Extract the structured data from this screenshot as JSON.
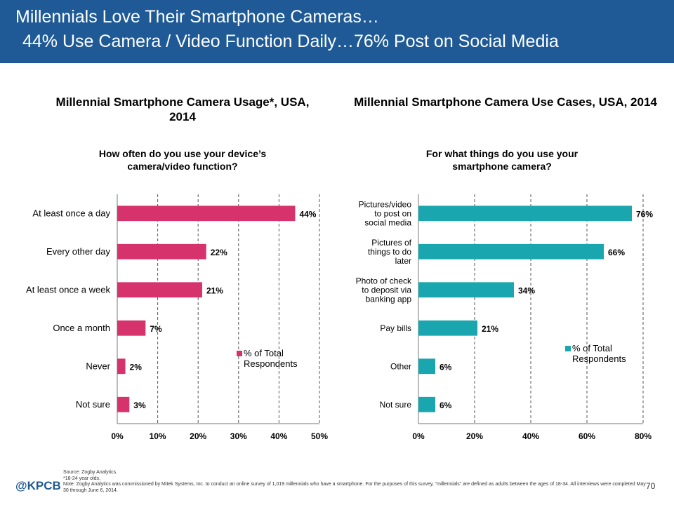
{
  "header": {
    "line1": "Millennials Love Their Smartphone Cameras…",
    "line2": "44% Use Camera / Video Function Daily…76% Post on Social Media"
  },
  "chart_data": [
    {
      "type": "bar",
      "orientation": "horizontal",
      "title": "Millennial Smartphone Camera Usage*, USA, 2014",
      "subtitle": "How often do you use your device’s camera/video function?",
      "categories": [
        "At least once a day",
        "Every other day",
        "At least once a week",
        "Once a month",
        "Never",
        "Not sure"
      ],
      "series": [
        {
          "name": "% of Total Respondents",
          "values": [
            44,
            22,
            21,
            7,
            2,
            3
          ]
        }
      ],
      "data_labels": [
        "44%",
        "22%",
        "21%",
        "7%",
        "2%",
        "3%"
      ],
      "xlim": [
        0,
        50
      ],
      "xticks": [
        "0%",
        "10%",
        "20%",
        "30%",
        "40%",
        "50%"
      ],
      "grid": "vertical dashed",
      "legend_position": "right-bottom",
      "color": "#d6336c"
    },
    {
      "type": "bar",
      "orientation": "horizontal",
      "title": "Millennial Smartphone Camera Use Cases, USA, 2014",
      "subtitle": "For what things do you use your smartphone camera?",
      "categories": [
        "Pictures/video to post on social media",
        "Pictures of things to do later",
        "Photo of check to deposit via banking app",
        "Pay bills",
        "Other",
        "Not sure"
      ],
      "category_lines": [
        [
          "Pictures/video",
          "to post on",
          "social media"
        ],
        [
          "Pictures of",
          "things to do",
          "later"
        ],
        [
          "Photo of check",
          "to deposit via",
          "banking app"
        ],
        [
          "Pay bills"
        ],
        [
          "Other"
        ],
        [
          "Not sure"
        ]
      ],
      "series": [
        {
          "name": "% of Total Respondents",
          "values": [
            76,
            66,
            34,
            21,
            6,
            6
          ]
        }
      ],
      "data_labels": [
        "76%",
        "66%",
        "34%",
        "21%",
        "6%",
        "6%"
      ],
      "xlim": [
        0,
        80
      ],
      "xticks": [
        "0%",
        "20%",
        "40%",
        "60%",
        "80%"
      ],
      "grid": "vertical dashed",
      "legend_position": "right-bottom",
      "color": "#1aa6ae"
    }
  ],
  "footer": {
    "source": "Source: Zogby Analytics.",
    "footnote": "*18-24 year olds.",
    "note": "Note: Zogby Analytics was commissioned by Mitek Systems, Inc. to conduct an online survey of 1,019 millennials who have a smartphone. For the purposes of this survey, “millennials” are defined as adults between the ages of 18-34. All interviews were completed May 30 through June 6, 2014."
  },
  "logo": "@KPCB",
  "page_number": "70"
}
